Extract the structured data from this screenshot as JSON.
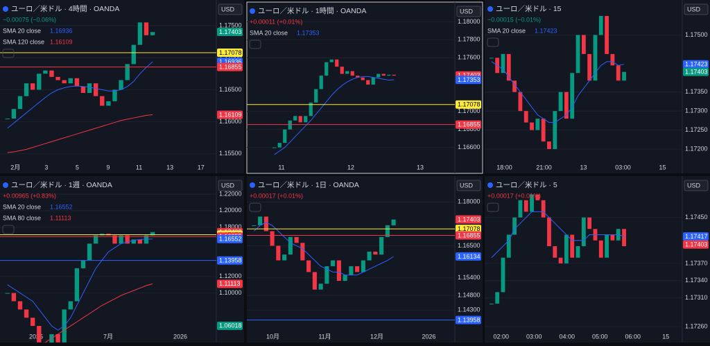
{
  "panels": [
    {
      "title": "ユーロ／米ドル · 4時間 · OANDA",
      "change": "−0.00075 (−0.06%)",
      "change_color": "#089981",
      "currency": "USD",
      "indicators": [
        {
          "name": "SMA 20 close",
          "value": 1.16936,
          "color": "#2962ff"
        },
        {
          "name": "SMA 120 close",
          "value": 1.16109,
          "color": "#f23645"
        }
      ],
      "ylim": [
        1.1539,
        1.179
      ],
      "yticks": [
        {
          "value": 1.175,
          "label": "1.17500"
        },
        {
          "value": 1.17,
          "label": "1.17000"
        },
        {
          "value": 1.165,
          "label": "1.16500"
        },
        {
          "value": 1.16,
          "label": "1.16000"
        },
        {
          "value": 1.155,
          "label": "1.15500"
        }
      ],
      "time_labels": [
        "2月",
        "3",
        "5",
        "9",
        "11",
        "13",
        "17"
      ],
      "closes": [
        1.1605,
        1.162,
        1.164,
        1.166,
        1.165,
        1.1675,
        1.168,
        1.167,
        1.1665,
        1.166,
        1.1668,
        1.1655,
        1.1645,
        1.166,
        1.164,
        1.1625,
        1.1632,
        1.165,
        1.1665,
        1.169,
        1.172,
        1.1755,
        1.1735,
        1.174
      ],
      "sma": [
        {
          "color": "#2962ff",
          "values": [
            1.159,
            1.1598,
            1.1606,
            1.1614,
            1.1622,
            1.163,
            1.1638,
            1.1645,
            1.165,
            1.1653,
            1.1655,
            1.1656,
            1.1655,
            1.1654,
            1.1652,
            1.165,
            1.1648,
            1.1648,
            1.165,
            1.1655,
            1.1663,
            1.1675,
            1.1685,
            1.16936
          ]
        },
        {
          "color": "#f23645",
          "values": [
            1.1552,
            1.1553,
            1.1555,
            1.1557,
            1.156,
            1.1563,
            1.1566,
            1.1569,
            1.1572,
            1.1575,
            1.1578,
            1.1581,
            1.1584,
            1.1587,
            1.159,
            1.1593,
            1.1596,
            1.1599,
            1.1602,
            1.1604,
            1.1606,
            1.1608,
            1.161,
            1.16109
          ]
        }
      ],
      "tags": [
        {
          "value": 1.17403,
          "color": "#089981"
        },
        {
          "value": 1.17078,
          "color": "#ffeb3b",
          "line": true
        },
        {
          "value": 1.16936,
          "color": "#2962ff"
        },
        {
          "value": 1.16855,
          "color": "#f23645",
          "line": true
        },
        {
          "value": 1.16109,
          "color": "#f23645"
        }
      ]
    },
    {
      "title": "ユーロ／米ドル · 1時間 · OANDA",
      "change": "+0.00011 (+0.01%)",
      "change_color": "#f23645",
      "currency": "USD",
      "indicators": [
        {
          "name": "SMA 20 close",
          "value": 1.17353,
          "color": "#2962ff"
        }
      ],
      "ylim": [
        1.1645,
        1.1822
      ],
      "yticks": [
        {
          "value": 1.18,
          "label": "1.18000"
        },
        {
          "value": 1.178,
          "label": "1.17800"
        },
        {
          "value": 1.176,
          "label": "1.17600"
        },
        {
          "value": 1.17,
          "label": "1.17000"
        },
        {
          "value": 1.168,
          "label": "1.16800"
        },
        {
          "value": 1.166,
          "label": "1.16600"
        }
      ],
      "time_labels": [
        "11",
        "12",
        "13"
      ],
      "closes": [
        1.166,
        1.1665,
        1.168,
        1.169,
        1.1695,
        1.1688,
        1.1695,
        1.171,
        1.1725,
        1.174,
        1.1755,
        1.1758,
        1.175,
        1.1742,
        1.1745,
        1.174,
        1.1738,
        1.1735,
        1.173,
        1.1738,
        1.1742,
        1.174,
        1.1741,
        1.174
      ],
      "sma": [
        {
          "color": "#2962ff",
          "values": [
            1.1652,
            1.1656,
            1.166,
            1.1666,
            1.1672,
            1.1678,
            1.1684,
            1.169,
            1.1697,
            1.1704,
            1.1711,
            1.1718,
            1.1724,
            1.1729,
            1.1733,
            1.1736,
            1.1738,
            1.1739,
            1.1739,
            1.1738,
            1.1737,
            1.1736,
            1.1735,
            1.17353
          ]
        }
      ],
      "tags": [
        {
          "value": 1.17403,
          "color": "#f23645"
        },
        {
          "value": 1.17353,
          "color": "#2962ff"
        },
        {
          "value": 1.17078,
          "color": "#ffeb3b",
          "line": true
        },
        {
          "value": 1.16855,
          "color": "#f23645",
          "line": true
        }
      ]
    },
    {
      "title": "ユーロ／米ドル · 15",
      "change": "−0.00015 (−0.01%)",
      "change_color": "#089981",
      "currency": "USD",
      "indicators": [
        {
          "name": "SMA 20 close",
          "value": 1.17423,
          "color": "#2962ff"
        }
      ],
      "ylim": [
        1.17169,
        1.17592
      ],
      "yticks": [
        {
          "value": 1.175,
          "label": "1.17500"
        },
        {
          "value": 1.1735,
          "label": "1.17350"
        },
        {
          "value": 1.173,
          "label": "1.17300"
        },
        {
          "value": 1.1725,
          "label": "1.17250"
        },
        {
          "value": 1.172,
          "label": "1.17200"
        }
      ],
      "time_labels": [
        "18:00",
        "21:00",
        "13",
        "03:00",
        "15"
      ],
      "closes": [
        1.1744,
        1.174,
        1.1745,
        1.1738,
        1.1735,
        1.173,
        1.1727,
        1.1725,
        1.1728,
        1.1722,
        1.172,
        1.173,
        1.1735,
        1.1728,
        1.174,
        1.175,
        1.1745,
        1.1738,
        1.175,
        1.1755,
        1.1745,
        1.1742,
        1.1738,
        1.17403
      ],
      "sma": [
        {
          "color": "#2962ff",
          "values": [
            1.1743,
            1.1742,
            1.1741,
            1.1739,
            1.1737,
            1.1735,
            1.1733,
            1.1731,
            1.1729,
            1.1728,
            1.1727,
            1.1727,
            1.1728,
            1.1729,
            1.1731,
            1.1734,
            1.1736,
            1.1738,
            1.174,
            1.1742,
            1.1743,
            1.1743,
            1.1742,
            1.17423
          ]
        }
      ],
      "tags": [
        {
          "value": 1.17423,
          "color": "#2962ff"
        },
        {
          "value": 1.17403,
          "color": "#089981"
        }
      ]
    },
    {
      "title": "ユーロ／米ドル · 1週 · OANDA",
      "change": "+0.00965 (+0.83%)",
      "change_color": "#f23645",
      "currency": "USD",
      "indicators": [
        {
          "name": "SMA 20 close",
          "value": 1.16552,
          "color": "#2962ff"
        },
        {
          "name": "SMA 80 close",
          "value": 1.11113,
          "color": "#f23645"
        }
      ],
      "ylim": [
        1.055,
        1.242
      ],
      "yticks": [
        {
          "value": 1.22,
          "label": "1.22000"
        },
        {
          "value": 1.2,
          "label": "1.20000"
        },
        {
          "value": 1.18,
          "label": "1.18000"
        },
        {
          "value": 1.12,
          "label": "1.12000"
        },
        {
          "value": 1.1,
          "label": "1.10000"
        }
      ],
      "time_labels": [
        "2025",
        "7月",
        "2026"
      ],
      "closes": [
        1.1,
        1.09,
        1.08,
        1.07,
        1.06,
        1.04,
        1.03,
        1.05,
        1.04,
        1.08,
        1.09,
        1.13,
        1.14,
        1.16,
        1.17,
        1.172,
        1.17,
        1.16,
        1.17,
        1.16,
        1.165,
        1.16,
        1.17,
        1.174
      ],
      "sma": [
        {
          "color": "#2962ff",
          "values": [
            1.11,
            1.105,
            1.1,
            1.095,
            1.09,
            1.08,
            1.07,
            1.06,
            1.055,
            1.06,
            1.07,
            1.085,
            1.1,
            1.115,
            1.13,
            1.14,
            1.15,
            1.155,
            1.16,
            1.162,
            1.164,
            1.165,
            1.1655,
            1.16552
          ]
        },
        {
          "color": "#f23645",
          "values": [
            null,
            null,
            null,
            null,
            null,
            null,
            1.04,
            1.045,
            1.05,
            1.055,
            1.06,
            1.065,
            1.07,
            1.075,
            1.08,
            1.085,
            1.089,
            1.093,
            1.097,
            1.1,
            1.103,
            1.106,
            1.109,
            1.11113
          ]
        }
      ],
      "tags": [
        {
          "value": 1.17403,
          "color": "#f23645"
        },
        {
          "value": 1.17078,
          "color": "#ffeb3b",
          "line": true
        },
        {
          "value": 1.16855,
          "color": "#f23645",
          "line": true
        },
        {
          "value": 1.16552,
          "color": "#2962ff"
        },
        {
          "value": 1.13958,
          "color": "#2962ff",
          "line": true
        },
        {
          "value": 1.11113,
          "color": "#f23645"
        },
        {
          "value": 1.06018,
          "color": "#089981"
        }
      ]
    },
    {
      "title": "ユーロ／米ドル · 1日 · OANDA",
      "change": "+0.00017 (+0.01%)",
      "change_color": "#f23645",
      "currency": "USD",
      "indicators": [],
      "ylim": [
        1.13614,
        1.18886
      ],
      "yticks": [
        {
          "value": 1.18,
          "label": "1.18000"
        },
        {
          "value": 1.165,
          "label": "1.16500"
        },
        {
          "value": 1.154,
          "label": "1.15400"
        },
        {
          "value": 1.148,
          "label": "1.14800"
        },
        {
          "value": 1.143,
          "label": "1.14300"
        }
      ],
      "time_labels": [
        "10月",
        "11月",
        "12月",
        "2026"
      ],
      "closes": [
        1.172,
        1.175,
        1.17,
        1.165,
        1.16,
        1.162,
        1.168,
        1.166,
        1.16,
        1.156,
        1.15,
        1.152,
        1.158,
        1.16,
        1.153,
        1.155,
        1.158,
        1.156,
        1.16,
        1.163,
        1.162,
        1.168,
        1.172,
        1.174
      ],
      "sma": [
        {
          "color": "#2962ff",
          "values": [
            1.17,
            1.172,
            1.173,
            1.172,
            1.17,
            1.168,
            1.166,
            1.165,
            1.164,
            1.162,
            1.16,
            1.158,
            1.157,
            1.156,
            1.156,
            1.155,
            1.155,
            1.155,
            1.156,
            1.157,
            1.158,
            1.159,
            1.16,
            1.16134
          ]
        }
      ],
      "tags": [
        {
          "value": 1.17403,
          "color": "#f23645"
        },
        {
          "value": 1.17078,
          "color": "#ffeb3b",
          "line": true
        },
        {
          "value": 1.16855,
          "color": "#f23645",
          "line": true
        },
        {
          "value": 1.16134,
          "color": "#2962ff"
        },
        {
          "value": 1.13958,
          "color": "#2962ff",
          "line": true
        }
      ]
    },
    {
      "title": "ユーロ／米ドル · 5",
      "change": "+0.00017 (+0.01%)",
      "change_color": "#f23645",
      "currency": "USD",
      "indicators": [],
      "ylim": [
        1.17254,
        1.17522
      ],
      "yticks": [
        {
          "value": 1.1745,
          "label": "1.17450"
        },
        {
          "value": 1.1737,
          "label": "1.17370"
        },
        {
          "value": 1.1734,
          "label": "1.17340"
        },
        {
          "value": 1.1731,
          "label": "1.17310"
        },
        {
          "value": 1.1726,
          "label": "1.17260"
        }
      ],
      "time_labels": [
        "02:00",
        "03:00",
        "04:00",
        "05:00",
        "06:00",
        "15"
      ],
      "closes": [
        1.173,
        1.1732,
        1.1738,
        1.1742,
        1.1745,
        1.1748,
        1.1746,
        1.1749,
        1.1748,
        1.1745,
        1.174,
        1.1738,
        1.1737,
        1.1742,
        1.1738,
        1.174,
        1.1745,
        1.1743,
        1.1741,
        1.1738,
        1.1742,
        1.1741,
        1.1743,
        1.174
      ],
      "sma": [
        {
          "color": "#2962ff",
          "values": [
            1.1738,
            1.1739,
            1.174,
            1.1741,
            1.1743,
            1.1744,
            1.1745,
            1.1746,
            1.1746,
            1.1746,
            1.1745,
            1.1744,
            1.1743,
            1.1742,
            1.1741,
            1.1741,
            1.1741,
            1.1742,
            1.1742,
            1.1742,
            1.1742,
            1.1742,
            1.1742,
            1.17417
          ]
        }
      ],
      "tags": [
        {
          "value": 1.17417,
          "color": "#2962ff"
        },
        {
          "value": 1.17403,
          "color": "#f23645"
        }
      ]
    }
  ]
}
